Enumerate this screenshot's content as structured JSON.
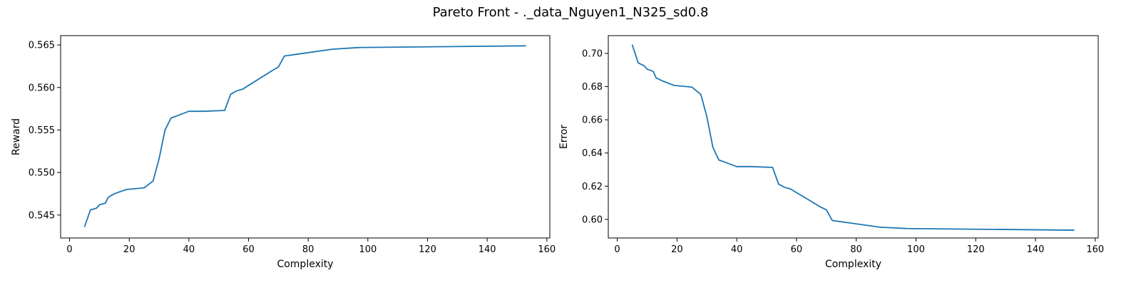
{
  "figure": {
    "suptitle": "Pareto Front - ._data_Nguyen1_N325_sd0.8"
  },
  "chart_data": [
    {
      "type": "line",
      "xlabel": "Complexity",
      "ylabel": "Reward",
      "xlim": [
        -3,
        161
      ],
      "ylim": [
        0.5423,
        0.5661
      ],
      "xticks": [
        0,
        20,
        40,
        60,
        80,
        100,
        120,
        140,
        160
      ],
      "yticks": [
        0.545,
        0.55,
        0.555,
        0.56,
        0.565
      ],
      "ytick_labels": [
        "0.545",
        "0.550",
        "0.555",
        "0.560",
        "0.565"
      ],
      "grid": false,
      "color": "#1f77b4",
      "x": [
        5,
        7,
        9,
        10,
        12,
        13,
        15,
        19,
        25,
        28,
        30,
        32,
        34,
        40,
        45,
        52,
        54,
        56,
        58,
        68,
        70,
        72,
        78,
        88,
        97,
        153
      ],
      "y": [
        0.5436,
        0.5456,
        0.5458,
        0.5462,
        0.5464,
        0.5471,
        0.5475,
        0.548,
        0.5482,
        0.549,
        0.5516,
        0.555,
        0.5564,
        0.5572,
        0.5572,
        0.5573,
        0.5592,
        0.5596,
        0.5598,
        0.562,
        0.5624,
        0.5637,
        0.564,
        0.5645,
        0.5647,
        0.5649
      ]
    },
    {
      "type": "line",
      "xlabel": "Complexity",
      "ylabel": "Error",
      "xlim": [
        -3,
        161
      ],
      "ylim": [
        0.5888,
        0.7107
      ],
      "xticks": [
        0,
        20,
        40,
        60,
        80,
        100,
        120,
        140,
        160
      ],
      "yticks": [
        0.6,
        0.62,
        0.64,
        0.66,
        0.68,
        0.7
      ],
      "ytick_labels": [
        "0.60",
        "0.62",
        "0.64",
        "0.66",
        "0.68",
        "0.70"
      ],
      "grid": false,
      "color": "#1f77b4",
      "x": [
        5,
        7,
        9,
        10,
        12,
        13,
        15,
        19,
        25,
        28,
        30,
        32,
        34,
        40,
        45,
        52,
        54,
        56,
        58,
        68,
        70,
        72,
        78,
        88,
        97,
        153
      ],
      "y": [
        0.7053,
        0.6943,
        0.6925,
        0.6905,
        0.6892,
        0.6853,
        0.6835,
        0.6807,
        0.6797,
        0.6752,
        0.6618,
        0.6435,
        0.6358,
        0.6318,
        0.6318,
        0.6313,
        0.6213,
        0.6193,
        0.6183,
        0.6075,
        0.6058,
        0.5993,
        0.5978,
        0.5953,
        0.5945,
        0.5935
      ]
    }
  ]
}
